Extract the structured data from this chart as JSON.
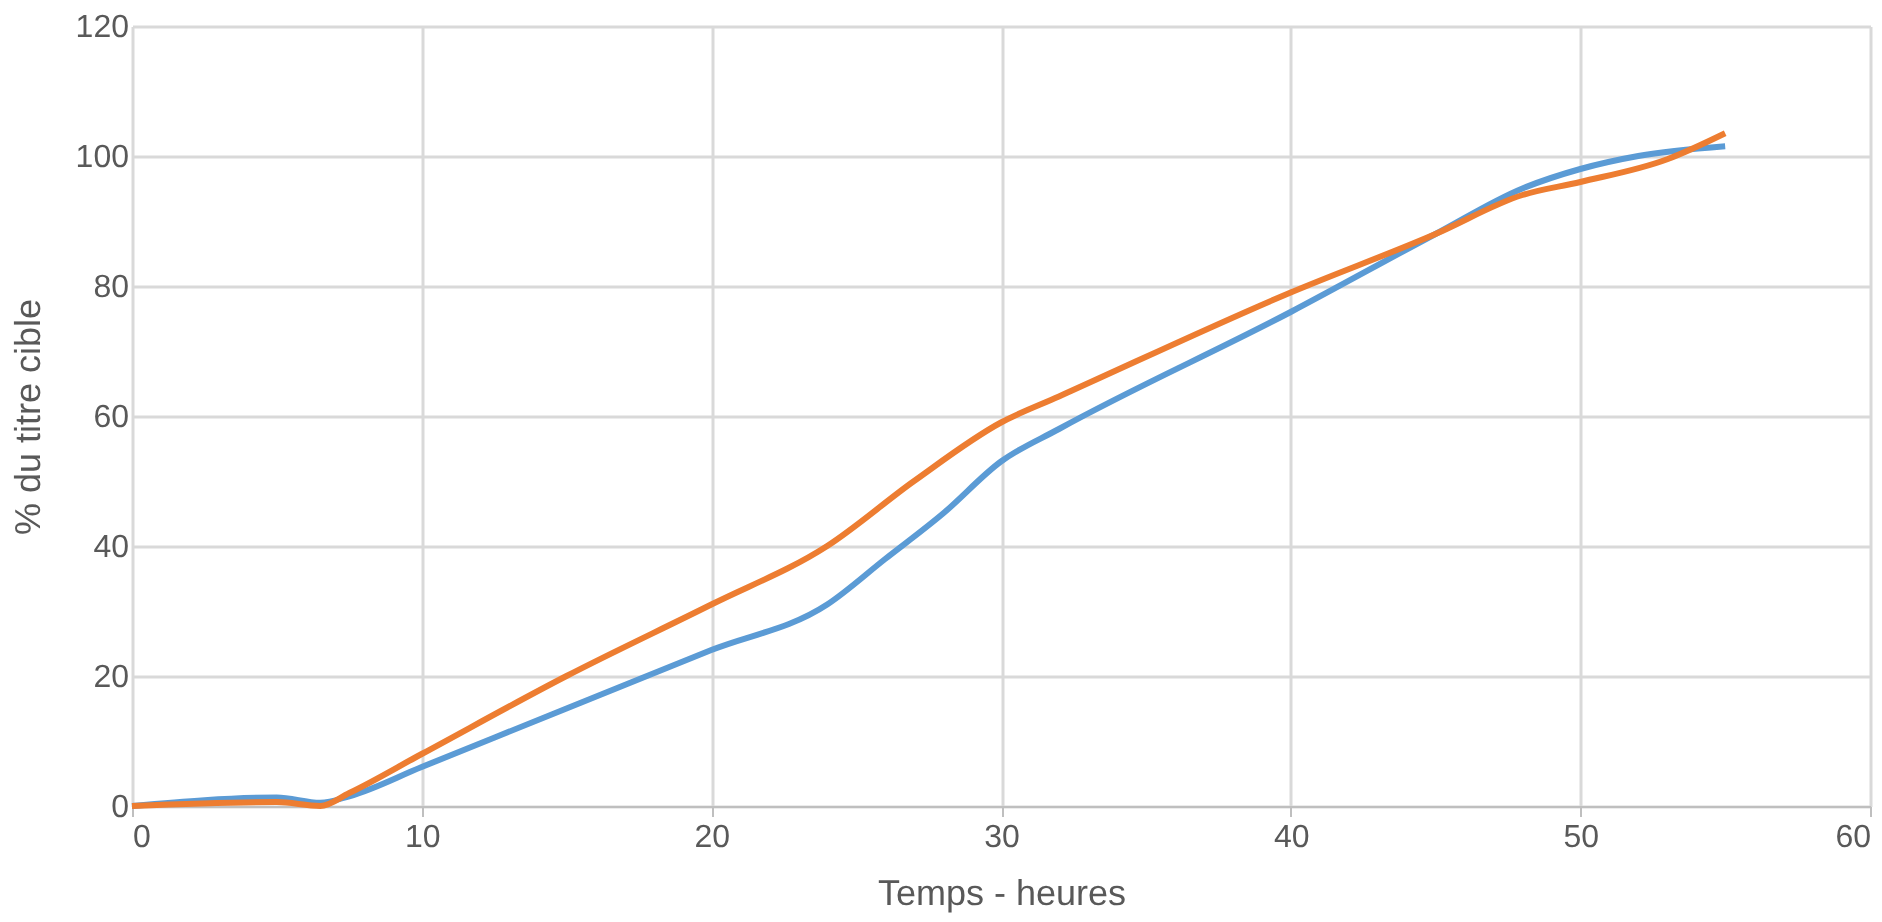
{
  "chart_data": {
    "type": "line",
    "xlabel": "Temps - heures",
    "ylabel": "% du titre cible",
    "xlim": [
      0,
      60
    ],
    "xticks": [
      0,
      10,
      20,
      30,
      40,
      50,
      60
    ],
    "ylim": [
      0,
      120
    ],
    "yticks": [
      0,
      20,
      40,
      60,
      80,
      100,
      120
    ],
    "grid": true,
    "legend": false,
    "marker": "none",
    "line_style": "solid",
    "series": [
      {
        "color": "#5b9bd5",
        "x": [
          0,
          5,
          6.5,
          7.5,
          10,
          15,
          20,
          24,
          26,
          28,
          30,
          32,
          40,
          45,
          48,
          50,
          52,
          55
        ],
        "values": [
          0,
          1.3,
          0.5,
          1.5,
          6,
          15,
          24,
          31,
          38,
          45,
          53,
          58,
          76,
          88,
          95,
          98,
          100,
          101.5
        ]
      },
      {
        "color": "#ed7d31",
        "x": [
          0,
          5,
          6.5,
          7.5,
          10,
          15,
          20,
          24,
          27,
          30,
          32,
          40,
          45,
          48,
          50,
          53,
          55
        ],
        "values": [
          0,
          0.6,
          0,
          2,
          8,
          20,
          31,
          40,
          50,
          59,
          63,
          79,
          88,
          94,
          96,
          99.5,
          103.5
        ]
      }
    ]
  }
}
